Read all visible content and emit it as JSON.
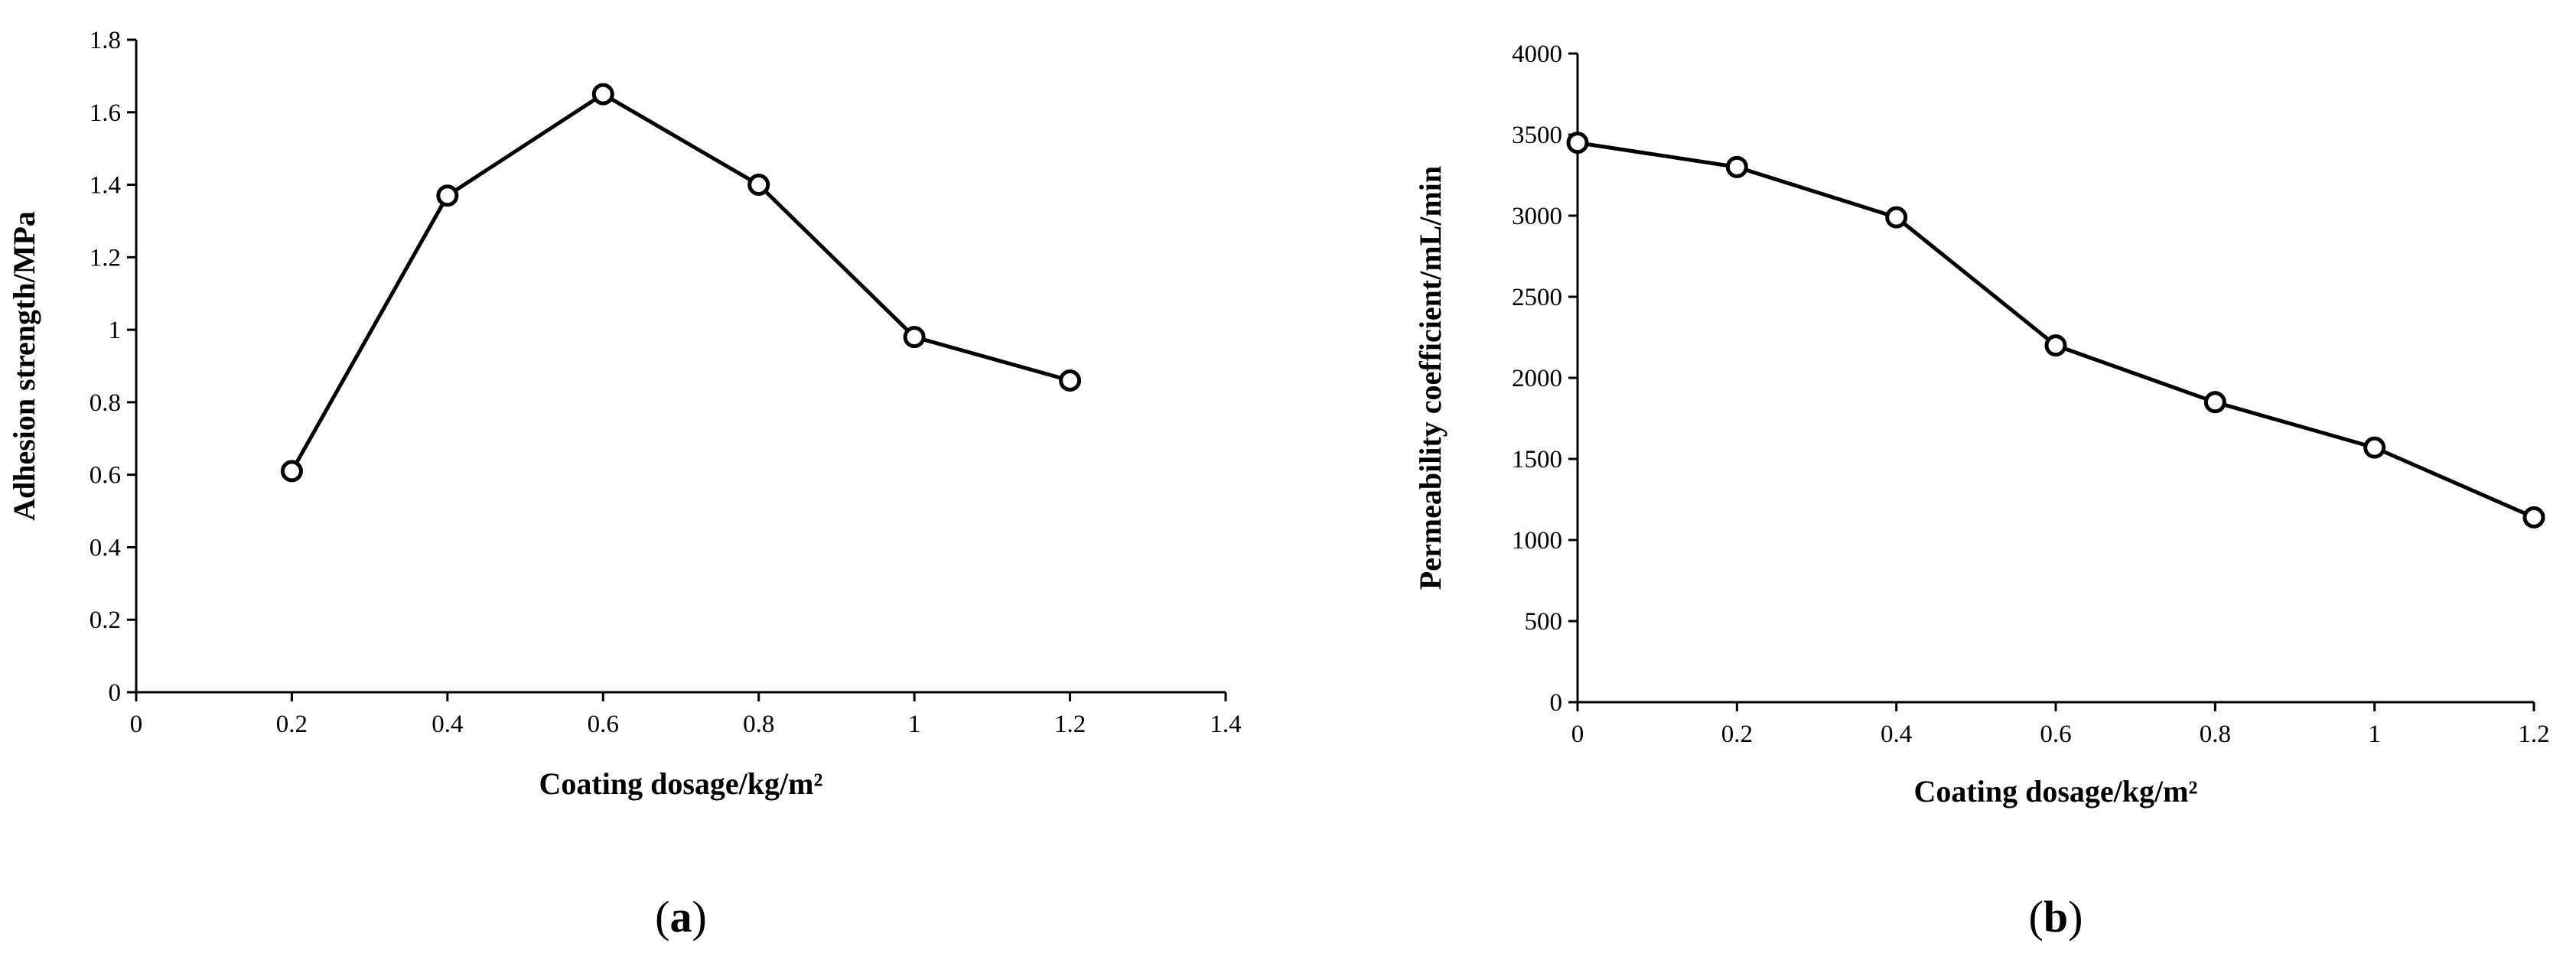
{
  "chart_data": [
    {
      "type": "line",
      "panel_label": "a",
      "title": "",
      "xlabel": "Coating dosage/kg/m²",
      "ylabel": "Adhesion strength/MPa",
      "xlim": [
        0,
        1.4
      ],
      "ylim": [
        0,
        1.8
      ],
      "xticks": [
        0,
        0.2,
        0.4,
        0.6,
        0.8,
        1,
        1.2,
        1.4
      ],
      "xtick_labels": [
        "0",
        "0.2",
        "0.4",
        "0.6",
        "0.8",
        "1",
        "1.2",
        "1.4"
      ],
      "yticks": [
        0,
        0.2,
        0.4,
        0.6,
        0.8,
        1,
        1.2,
        1.4,
        1.6,
        1.8
      ],
      "ytick_labels": [
        "0",
        "0.2",
        "0.4",
        "0.6",
        "0.8",
        "1",
        "1.2",
        "1.4",
        "1.6",
        "1.8"
      ],
      "grid": false,
      "legend": false,
      "series": [
        {
          "name": "Adhesion strength",
          "marker": "open-circle",
          "x": [
            0.2,
            0.4,
            0.6,
            0.8,
            1.0,
            1.2
          ],
          "y": [
            0.61,
            1.37,
            1.65,
            1.4,
            0.98,
            0.86
          ]
        }
      ]
    },
    {
      "type": "line",
      "panel_label": "b",
      "title": "",
      "xlabel": "Coating dosage/kg/m²",
      "ylabel": "Permeability coefficient/mL/min",
      "xlim": [
        0,
        1.2
      ],
      "ylim": [
        0,
        4000
      ],
      "xticks": [
        0,
        0.2,
        0.4,
        0.6,
        0.8,
        1,
        1.2
      ],
      "xtick_labels": [
        "0",
        "0.2",
        "0.4",
        "0.6",
        "0.8",
        "1",
        "1.2"
      ],
      "yticks": [
        0,
        500,
        1000,
        1500,
        2000,
        2500,
        3000,
        3500,
        4000
      ],
      "ytick_labels": [
        "0",
        "500",
        "1000",
        "1500",
        "2000",
        "2500",
        "3000",
        "3500",
        "4000"
      ],
      "grid": false,
      "legend": false,
      "series": [
        {
          "name": "Permeability coefficient",
          "marker": "open-circle",
          "x": [
            0,
            0.2,
            0.4,
            0.6,
            0.8,
            1.0,
            1.2
          ],
          "y": [
            3450,
            3300,
            2990,
            2200,
            1850,
            1570,
            1140
          ]
        }
      ]
    }
  ],
  "colors": {
    "line": "#000000",
    "marker_fill": "#ffffff",
    "background": "#ffffff"
  }
}
